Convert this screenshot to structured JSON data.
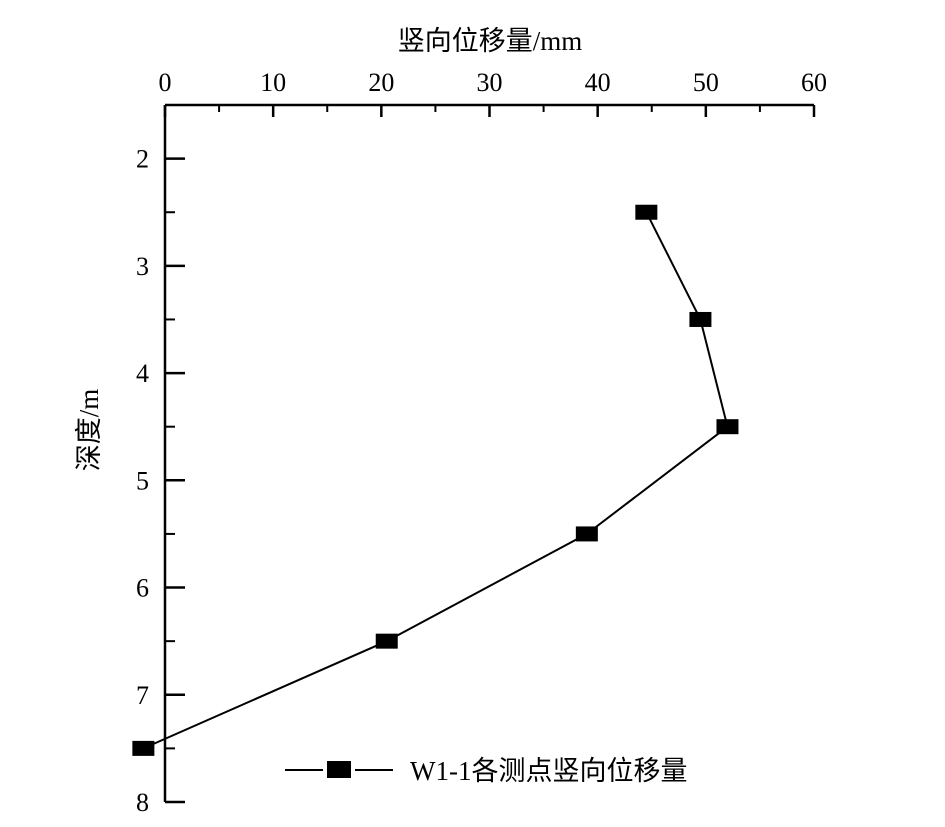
{
  "chart_data": {
    "type": "line",
    "xlabel": "竖向位移量/mm",
    "ylabel": "深度/m",
    "xlim": [
      0,
      60
    ],
    "ylim": [
      1.5,
      8
    ],
    "x_axis_position": "top",
    "y_axis_inverted": true,
    "xticks": [
      "0",
      "10",
      "20",
      "30",
      "40",
      "50",
      "60"
    ],
    "yticks": [
      "2",
      "3",
      "4",
      "5",
      "6",
      "7",
      "8"
    ],
    "grid": false,
    "legend_position": "bottom-right",
    "series": [
      {
        "name": "W1-1各测点竖向位移量",
        "marker": "square",
        "color": "#000000",
        "x": [
          44.5,
          49.5,
          52,
          39,
          20.5,
          -2
        ],
        "y": [
          2.5,
          3.5,
          4.5,
          5.5,
          6.5,
          7.5
        ]
      }
    ]
  }
}
